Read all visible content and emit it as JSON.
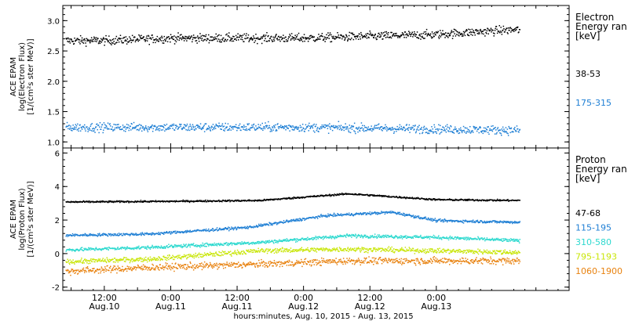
{
  "chart_data": [
    {
      "type": "scatter",
      "panel": "electron",
      "ylabel_lines": [
        "ACE EPAM",
        "log(Electron Flux)",
        "[1/(cm²s ster MeV)]"
      ],
      "ylim": [
        0.9,
        3.25
      ],
      "yticks": [
        1.0,
        1.5,
        2.0,
        2.5,
        3.0
      ],
      "ytick_labels": [
        "1.0",
        "1.5",
        "2.0",
        "2.5",
        "3.0"
      ],
      "legend_title_lines": [
        "Electron",
        "Energy ran",
        "[keV]"
      ],
      "series": [
        {
          "name": "38-53",
          "color": "#000000",
          "approx_levels": [
            [
              0,
              2.68
            ],
            [
              12,
              2.68
            ],
            [
              24,
              2.72
            ],
            [
              48,
              2.72
            ],
            [
              72,
              2.78
            ],
            [
              84,
              2.85
            ],
            [
              87,
              2.86
            ]
          ],
          "scatter": 0.07
        },
        {
          "name": "175-315",
          "color": "#1f7fd4",
          "approx_levels": [
            [
              0,
              1.25
            ],
            [
              24,
              1.25
            ],
            [
              48,
              1.25
            ],
            [
              72,
              1.22
            ],
            [
              87,
              1.2
            ]
          ],
          "scatter": 0.07
        }
      ]
    },
    {
      "type": "scatter",
      "panel": "proton",
      "ylabel_lines": [
        "ACE EPAM",
        "log(Proton Flux)",
        "[1/(cm²s ster MeV)]"
      ],
      "ylim": [
        -2.2,
        6.3
      ],
      "yticks": [
        -2,
        0,
        2,
        4,
        6
      ],
      "ytick_labels": [
        "-2",
        "0",
        "2",
        "4",
        "6"
      ],
      "legend_title_lines": [
        "Proton",
        "Energy ran",
        "[keV]"
      ],
      "series": [
        {
          "name": "47-68",
          "color": "#000000",
          "approx_levels": [
            [
              0,
              3.1
            ],
            [
              24,
              3.15
            ],
            [
              40,
              3.2
            ],
            [
              56,
              3.6
            ],
            [
              72,
              3.25
            ],
            [
              87,
              3.2
            ]
          ],
          "scatter": 0.05
        },
        {
          "name": "115-195",
          "color": "#1f7fd4",
          "approx_levels": [
            [
              0,
              1.1
            ],
            [
              20,
              1.2
            ],
            [
              38,
              1.6
            ],
            [
              52,
              2.3
            ],
            [
              64,
              2.5
            ],
            [
              72,
              2.0
            ],
            [
              87,
              1.9
            ]
          ],
          "scatter": 0.08
        },
        {
          "name": "310-580",
          "color": "#2ed9cf",
          "approx_levels": [
            [
              0,
              0.2
            ],
            [
              20,
              0.4
            ],
            [
              40,
              0.7
            ],
            [
              56,
              1.1
            ],
            [
              72,
              1.0
            ],
            [
              87,
              0.8
            ]
          ],
          "scatter": 0.1
        },
        {
          "name": "795-1193",
          "color": "#c9e60a",
          "approx_levels": [
            [
              0,
              -0.5
            ],
            [
              20,
              -0.3
            ],
            [
              40,
              0.2
            ],
            [
              56,
              0.3
            ],
            [
              72,
              0.2
            ],
            [
              87,
              0.1
            ]
          ],
          "scatter": 0.14
        },
        {
          "name": "1060-1900",
          "color": "#e8820f",
          "approx_levels": [
            [
              0,
              -1.1
            ],
            [
              20,
              -0.8
            ],
            [
              40,
              -0.6
            ],
            [
              56,
              -0.4
            ],
            [
              72,
              -0.4
            ],
            [
              87,
              -0.4
            ]
          ],
          "scatter": 0.2
        }
      ]
    }
  ],
  "time_axis": {
    "units": "hours since Aug. 10, 2015 00:00 (UT)",
    "xlim": [
      4.5,
      96.0
    ],
    "major_ticks": [
      {
        "value": 12,
        "time": "12:00",
        "date": "Aug.10"
      },
      {
        "value": 24,
        "time": "0:00",
        "date": "Aug.11"
      },
      {
        "value": 36,
        "time": "12:00",
        "date": "Aug.11"
      },
      {
        "value": 48,
        "time": "0:00",
        "date": "Aug.12"
      },
      {
        "value": 60,
        "time": "12:00",
        "date": "Aug.12"
      },
      {
        "value": 72,
        "time": "0:00",
        "date": "Aug.13"
      }
    ],
    "data_end": 87,
    "xlabel": "hours:minutes, Aug. 10, 2015 - Aug. 13, 2015"
  }
}
